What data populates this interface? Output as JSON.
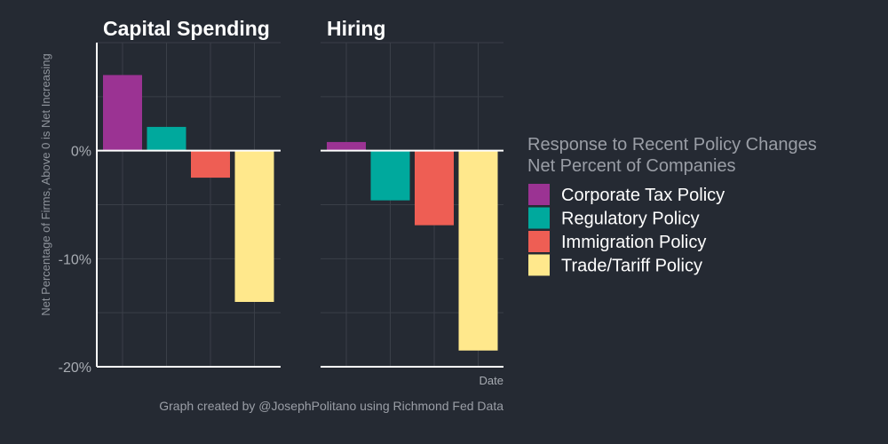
{
  "chart_data": {
    "type": "bar",
    "ylabel": "Net Percentage of Firms, Above 0 is Net Increasing",
    "xlabel": "Date",
    "ylim": [
      -20,
      10
    ],
    "yticks": [
      -20,
      -10,
      0
    ],
    "ytick_labels": [
      "-20%",
      "-10%",
      "0%"
    ],
    "panels": [
      {
        "title": "Capital Spending",
        "values": [
          {
            "series": "Corporate Tax Policy",
            "value": 7.0
          },
          {
            "series": "Regulatory Policy",
            "value": 2.2
          },
          {
            "series": "Immigration Policy",
            "value": -2.5
          },
          {
            "series": "Trade/Tariff Policy",
            "value": -14.0
          }
        ]
      },
      {
        "title": "Hiring",
        "values": [
          {
            "series": "Corporate Tax Policy",
            "value": 0.8
          },
          {
            "series": "Regulatory Policy",
            "value": -4.6
          },
          {
            "series": "Immigration Policy",
            "value": -6.9
          },
          {
            "series": "Trade/Tariff Policy",
            "value": -18.5
          }
        ]
      }
    ],
    "legend": {
      "title_line1": "Response to Recent Policy Changes",
      "title_line2": "Net Percent of Companies",
      "position": "right",
      "entries": [
        {
          "label": "Corporate Tax Policy",
          "color": "#9b3393"
        },
        {
          "label": "Regulatory Policy",
          "color": "#00a99d"
        },
        {
          "label": "Immigration Policy",
          "color": "#ee5e54"
        },
        {
          "label": "Trade/Tariff Policy",
          "color": "#ffe88c"
        }
      ]
    },
    "caption": "Graph created by @JosephPolitano using Richmond Fed Data"
  }
}
